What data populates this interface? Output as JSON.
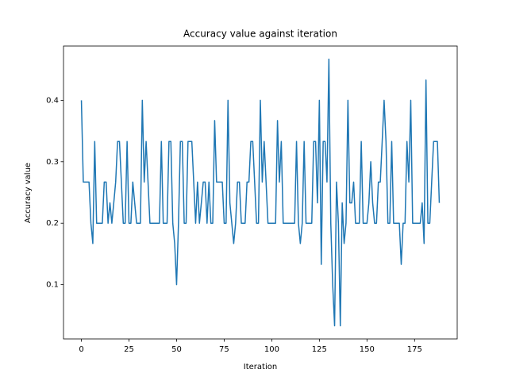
{
  "chart_data": {
    "type": "line",
    "title": "Accuracy value against iteration",
    "x_label": "Iteration",
    "y_label": "Accuracy value",
    "x": [
      0,
      1,
      2,
      3,
      4,
      5,
      6,
      7,
      8,
      9,
      10,
      11,
      12,
      13,
      14,
      15,
      16,
      17,
      18,
      19,
      20,
      21,
      22,
      23,
      24,
      25,
      26,
      27,
      28,
      29,
      30,
      31,
      32,
      33,
      34,
      35,
      36,
      37,
      38,
      39,
      40,
      41,
      42,
      43,
      44,
      45,
      46,
      47,
      48,
      49,
      50,
      51,
      52,
      53,
      54,
      55,
      56,
      57,
      58,
      59,
      60,
      61,
      62,
      63,
      64,
      65,
      66,
      67,
      68,
      69,
      70,
      71,
      72,
      73,
      74,
      75,
      76,
      77,
      78,
      79,
      80,
      81,
      82,
      83,
      84,
      85,
      86,
      87,
      88,
      89,
      90,
      91,
      92,
      93,
      94,
      95,
      96,
      97,
      98,
      99,
      100,
      101,
      102,
      103,
      104,
      105,
      106,
      107,
      108,
      109,
      110,
      111,
      112,
      113,
      114,
      115,
      116,
      117,
      118,
      119,
      120,
      121,
      122,
      123,
      124,
      125,
      126,
      127,
      128,
      129,
      130,
      131,
      132,
      133,
      134,
      135,
      136,
      137,
      138,
      139,
      140,
      141,
      142,
      143,
      144,
      145,
      146,
      147,
      148,
      149,
      150,
      151,
      152,
      153,
      154,
      155,
      156,
      157,
      158,
      159,
      160,
      161,
      162,
      163,
      164,
      165,
      166,
      167,
      168,
      169,
      170,
      171,
      172,
      173,
      174,
      175,
      176,
      177,
      178,
      179,
      180,
      181,
      182,
      183,
      184,
      185,
      186,
      187,
      188
    ],
    "color": "#1f77b4",
    "values": [
      0.4,
      0.267,
      0.267,
      0.267,
      0.267,
      0.2,
      0.167,
      0.333,
      0.2,
      0.2,
      0.2,
      0.2,
      0.267,
      0.267,
      0.2,
      0.233,
      0.2,
      0.233,
      0.267,
      0.333,
      0.333,
      0.267,
      0.2,
      0.2,
      0.333,
      0.2,
      0.2,
      0.267,
      0.233,
      0.2,
      0.2,
      0.2,
      0.4,
      0.267,
      0.333,
      0.267,
      0.2,
      0.2,
      0.2,
      0.2,
      0.2,
      0.2,
      0.333,
      0.2,
      0.2,
      0.2,
      0.333,
      0.333,
      0.2,
      0.167,
      0.1,
      0.2,
      0.333,
      0.333,
      0.2,
      0.2,
      0.333,
      0.333,
      0.333,
      0.267,
      0.2,
      0.267,
      0.2,
      0.233,
      0.267,
      0.267,
      0.2,
      0.267,
      0.2,
      0.2,
      0.367,
      0.267,
      0.267,
      0.267,
      0.267,
      0.2,
      0.2,
      0.4,
      0.233,
      0.2,
      0.167,
      0.2,
      0.267,
      0.267,
      0.2,
      0.2,
      0.2,
      0.267,
      0.267,
      0.333,
      0.333,
      0.267,
      0.2,
      0.2,
      0.4,
      0.267,
      0.333,
      0.267,
      0.2,
      0.2,
      0.2,
      0.2,
      0.2,
      0.367,
      0.267,
      0.333,
      0.2,
      0.2,
      0.2,
      0.2,
      0.2,
      0.2,
      0.2,
      0.333,
      0.2,
      0.167,
      0.2,
      0.333,
      0.2,
      0.2,
      0.2,
      0.2,
      0.333,
      0.333,
      0.233,
      0.4,
      0.133,
      0.333,
      0.333,
      0.267,
      0.467,
      0.2,
      0.1,
      0.033,
      0.267,
      0.2,
      0.033,
      0.233,
      0.167,
      0.2,
      0.4,
      0.233,
      0.233,
      0.267,
      0.2,
      0.2,
      0.2,
      0.333,
      0.2,
      0.2,
      0.2,
      0.233,
      0.3,
      0.233,
      0.2,
      0.2,
      0.267,
      0.267,
      0.333,
      0.4,
      0.333,
      0.2,
      0.2,
      0.333,
      0.2,
      0.2,
      0.2,
      0.2,
      0.133,
      0.2,
      0.2,
      0.333,
      0.267,
      0.4,
      0.2,
      0.2,
      0.2,
      0.2,
      0.2,
      0.233,
      0.167,
      0.433,
      0.2,
      0.2,
      0.267,
      0.333,
      0.333,
      0.333,
      0.233
    ],
    "xlim": [
      -9.4,
      197.4
    ],
    "ylim": [
      0.0117,
      0.4883
    ],
    "xticks": [
      0,
      25,
      50,
      75,
      100,
      125,
      150,
      175
    ],
    "yticks": [
      0.1,
      0.2,
      0.3,
      0.4
    ]
  }
}
